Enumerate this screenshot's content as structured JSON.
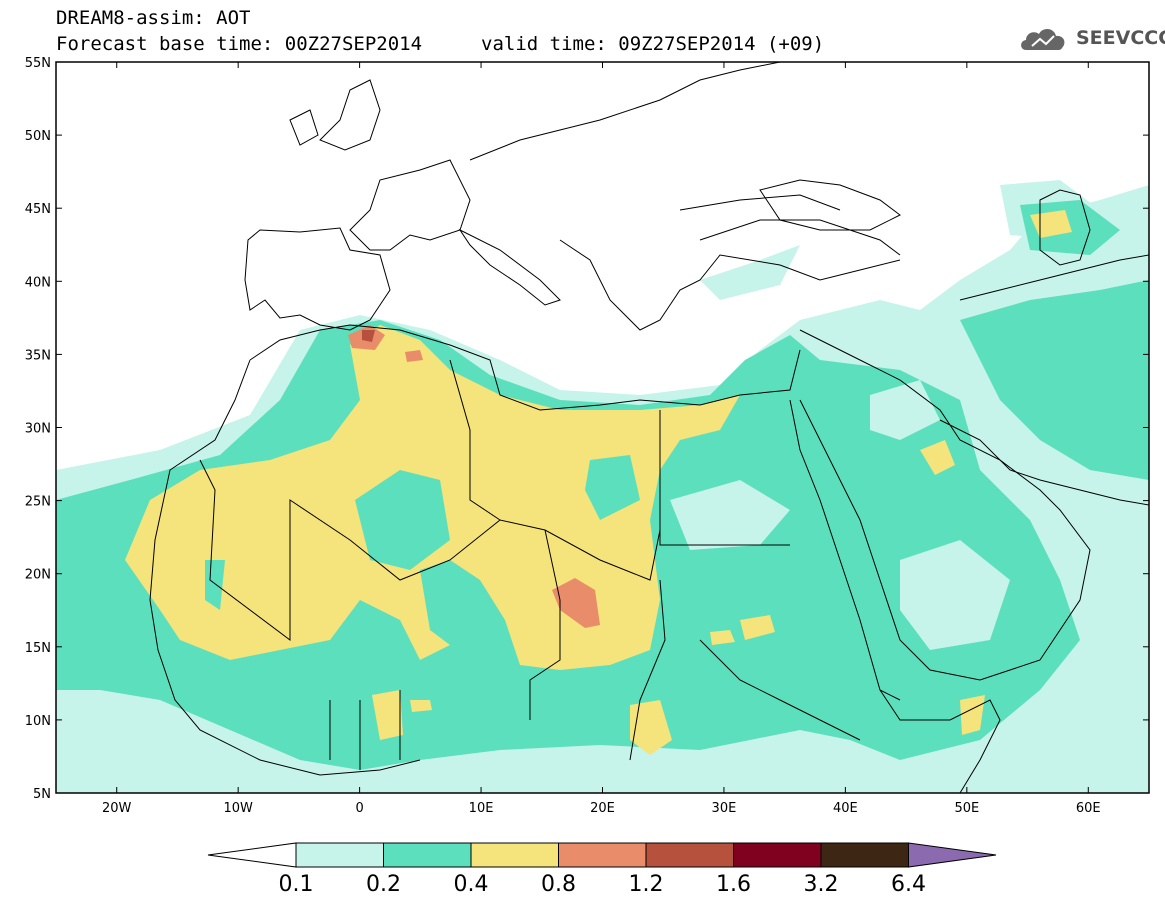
{
  "header": {
    "title": "DREAM8-assim: AOT",
    "base_time": "Forecast base time: 00Z27SEP2014",
    "valid_time": "valid time: 09Z27SEP2014 (+09)"
  },
  "logo": {
    "text": "SEEVCCC",
    "icon": "cloud-logo-icon"
  },
  "map": {
    "lon_range": [
      -25,
      65
    ],
    "lat_range": [
      5,
      55
    ],
    "lat_labels": [
      "5N",
      "10N",
      "15N",
      "20N",
      "25N",
      "30N",
      "35N",
      "40N",
      "45N",
      "50N",
      "55N"
    ],
    "lat_values": [
      5,
      10,
      15,
      20,
      25,
      30,
      35,
      40,
      45,
      50,
      55
    ],
    "lon_labels": [
      "20W",
      "10W",
      "0",
      "10E",
      "20E",
      "30E",
      "40E",
      "50E",
      "60E"
    ],
    "lon_values": [
      -20,
      -10,
      0,
      10,
      20,
      30,
      40,
      50,
      60
    ]
  },
  "colorbar": {
    "labels": [
      "0.1",
      "0.2",
      "0.4",
      "0.8",
      "1.2",
      "1.6",
      "3.2",
      "6.4"
    ],
    "colors": [
      "#ffffff",
      "#c6f3ea",
      "#5cdfbd",
      "#f5e37b",
      "#e98c6a",
      "#b5513d",
      "#800020",
      "#3e2614",
      "#8c6ab0"
    ]
  }
}
